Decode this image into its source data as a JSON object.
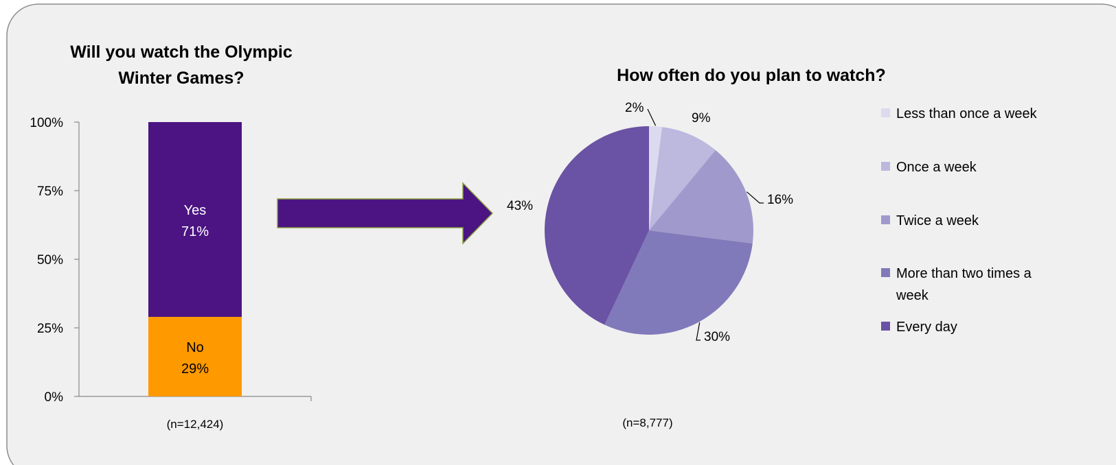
{
  "chart_data": [
    {
      "type": "bar",
      "stacked": true,
      "title": "Will you watch the Olympic Winter Games?",
      "title_lines": [
        "Will you watch the Olympic",
        "Winter Games?"
      ],
      "categories": [
        ""
      ],
      "series": [
        {
          "name": "No",
          "values": [
            29
          ],
          "color": "#FF9900",
          "label_top": "No",
          "label_bottom": "29%",
          "text_color": "#000000"
        },
        {
          "name": "Yes",
          "values": [
            71
          ],
          "color": "#4B1482",
          "label_top": "Yes",
          "label_bottom": "71%",
          "text_color": "#FFFFFF"
        }
      ],
      "ylim": [
        0,
        100
      ],
      "y_ticks": [
        0,
        25,
        50,
        75,
        100
      ],
      "y_tick_labels": [
        "0%",
        "25%",
        "50%",
        "75%",
        "100%"
      ],
      "note": "(n=12,424)",
      "grid": false
    },
    {
      "type": "pie",
      "title": "How often do you plan to watch?",
      "slices": [
        {
          "name": "Less than once a week",
          "value": 2,
          "label": "2%",
          "color": "#DCDAEE"
        },
        {
          "name": "Once a week",
          "value": 9,
          "label": "9%",
          "color": "#BCB8DE"
        },
        {
          "name": "Twice a week",
          "value": 16,
          "label": "16%",
          "color": "#A09ACC"
        },
        {
          "name": "More than two times a week",
          "value": 30,
          "label": "30%",
          "color": "#8079BA"
        },
        {
          "name": "Every day",
          "value": 43,
          "label": "43%",
          "color": "#6A52A4"
        }
      ],
      "legend_lines": [
        [
          "Less than once a week"
        ],
        [
          "Once a week"
        ],
        [
          "Twice a week"
        ],
        [
          "More than two times a",
          "week"
        ],
        [
          "Every day"
        ]
      ],
      "legend_position": "right",
      "note": "(n=8,777)"
    }
  ],
  "arrow_color": "#4B1482",
  "arrow_outline_color": "#8BA03C"
}
